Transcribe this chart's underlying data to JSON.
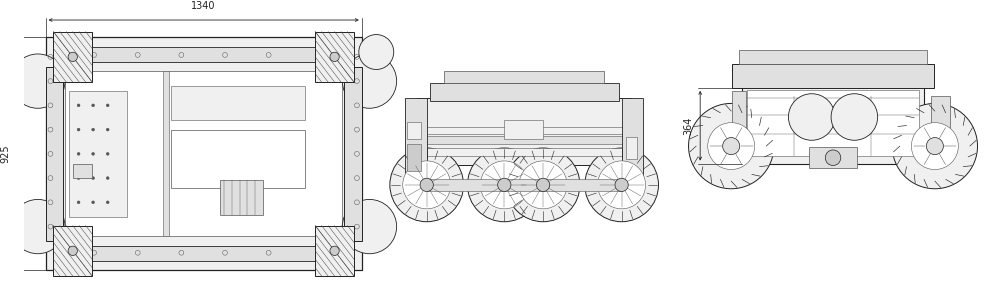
{
  "bg_color": "#ffffff",
  "lc": "#555555",
  "dc": "#222222",
  "mc": "#444444",
  "fill_white": "#ffffff",
  "fill_light": "#f0f0f0",
  "fill_med": "#e0e0e0",
  "fill_dark": "#cccccc",
  "dim_1340": "1340",
  "dim_925": "925",
  "dim_364": "364",
  "figsize": [
    10.0,
    3.0
  ],
  "dpi": 100
}
